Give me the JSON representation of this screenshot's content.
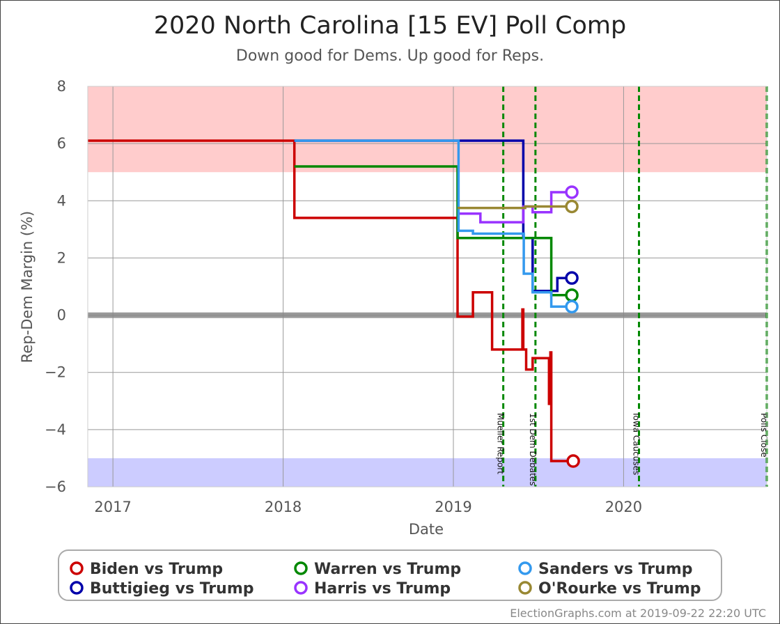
{
  "header": {
    "title": "2020 North Carolina [15 EV] Poll Comp",
    "subtitle": "Down good for Dems. Up good for Reps."
  },
  "footer": {
    "credit": "ElectionGraphs.com at 2019-09-22 22:20 UTC"
  },
  "colors": {
    "rep_band": "#ffcccc",
    "dem_band": "#ccccff",
    "zero_line": "#888888",
    "grid": "#999999",
    "event_line": "#008800"
  },
  "chart_data": {
    "type": "line",
    "title": "2020 North Carolina [15 EV] Poll Comp",
    "subtitle": "Down good for Dems. Up good for Reps.",
    "xlabel": "Date",
    "ylabel": "Rep-Dem Margin (%)",
    "xlim": [
      "2016-11-08",
      "2020-11-03"
    ],
    "ylim": [
      -6,
      8
    ],
    "x_ticks": [
      "2017-01-01",
      "2018-01-01",
      "2019-01-01",
      "2020-01-01"
    ],
    "x_tick_labels": [
      "2017",
      "2018",
      "2019",
      "2020"
    ],
    "y_ticks": [
      -6,
      -4,
      -2,
      0,
      2,
      4,
      6,
      8
    ],
    "y_tick_labels": [
      "−6",
      "−4",
      "−2",
      "0",
      "2",
      "4",
      "6",
      "8"
    ],
    "grid": true,
    "bands": [
      {
        "from": 5,
        "to": 8,
        "color": "#ffcccc"
      },
      {
        "from": -6,
        "to": -5,
        "color": "#ccccff"
      }
    ],
    "events": [
      {
        "date": "2019-04-18",
        "label": "Mueller Report"
      },
      {
        "date": "2019-06-26",
        "label": "1st Dem Debates"
      },
      {
        "date": "2020-02-03",
        "label": "Iowa Caucuses"
      },
      {
        "date": "2020-11-03",
        "label": "Polls Close"
      }
    ],
    "series": [
      {
        "name": "Biden vs Trump",
        "color": "#cc0000",
        "points": [
          [
            "2016-11-08",
            6.1
          ],
          [
            "2018-01-25",
            6.1
          ],
          [
            "2018-01-25",
            3.4
          ],
          [
            "2019-01-10",
            3.4
          ],
          [
            "2019-01-10",
            -0.05
          ],
          [
            "2019-02-12",
            -0.05
          ],
          [
            "2019-02-12",
            0.8
          ],
          [
            "2019-03-25",
            0.8
          ],
          [
            "2019-03-25",
            -1.2
          ],
          [
            "2019-05-29",
            -1.2
          ],
          [
            "2019-05-29",
            0.2
          ],
          [
            "2019-05-31",
            0.2
          ],
          [
            "2019-05-31",
            -1.2
          ],
          [
            "2019-06-06",
            -1.2
          ],
          [
            "2019-06-06",
            -1.9
          ],
          [
            "2019-06-20",
            -1.9
          ],
          [
            "2019-06-20",
            -1.5
          ],
          [
            "2019-07-25",
            -1.5
          ],
          [
            "2019-07-25",
            -3.1
          ],
          [
            "2019-07-28",
            -3.1
          ],
          [
            "2019-07-28",
            -1.3
          ],
          [
            "2019-07-30",
            -1.3
          ],
          [
            "2019-07-30",
            -5.1
          ],
          [
            "2019-09-15",
            -5.1
          ]
        ]
      },
      {
        "name": "Buttigieg vs Trump",
        "color": "#0000aa",
        "points": [
          [
            "2018-01-25",
            6.1
          ],
          [
            "2019-05-31",
            6.1
          ],
          [
            "2019-05-31",
            2.7
          ],
          [
            "2019-06-20",
            2.7
          ],
          [
            "2019-06-20",
            0.85
          ],
          [
            "2019-08-12",
            0.85
          ],
          [
            "2019-08-12",
            1.3
          ],
          [
            "2019-09-12",
            1.3
          ]
        ]
      },
      {
        "name": "Warren vs Trump",
        "color": "#008800",
        "points": [
          [
            "2018-01-25",
            5.2
          ],
          [
            "2019-01-10",
            5.2
          ],
          [
            "2019-01-10",
            2.7
          ],
          [
            "2019-07-30",
            2.7
          ],
          [
            "2019-07-30",
            0.7
          ],
          [
            "2019-09-12",
            0.7
          ]
        ]
      },
      {
        "name": "Harris vs Trump",
        "color": "#9933ff",
        "points": [
          [
            "2019-01-10",
            3.55
          ],
          [
            "2019-02-28",
            3.55
          ],
          [
            "2019-02-28",
            3.25
          ],
          [
            "2019-05-31",
            3.25
          ],
          [
            "2019-05-31",
            3.8
          ],
          [
            "2019-06-20",
            3.8
          ],
          [
            "2019-06-20",
            3.6
          ],
          [
            "2019-07-30",
            3.6
          ],
          [
            "2019-07-30",
            4.3
          ],
          [
            "2019-09-12",
            4.3
          ]
        ]
      },
      {
        "name": "Sanders vs Trump",
        "color": "#3399ee",
        "points": [
          [
            "2018-01-25",
            6.1
          ],
          [
            "2019-01-12",
            6.1
          ],
          [
            "2019-01-12",
            2.95
          ],
          [
            "2019-02-12",
            2.95
          ],
          [
            "2019-02-12",
            2.85
          ],
          [
            "2019-06-01",
            2.85
          ],
          [
            "2019-06-01",
            1.45
          ],
          [
            "2019-06-20",
            1.45
          ],
          [
            "2019-06-20",
            0.8
          ],
          [
            "2019-07-30",
            0.8
          ],
          [
            "2019-07-30",
            0.3
          ],
          [
            "2019-09-12",
            0.3
          ]
        ]
      },
      {
        "name": "O'Rourke vs Trump",
        "color": "#998833",
        "points": [
          [
            "2019-01-10",
            3.75
          ],
          [
            "2019-06-04",
            3.75
          ],
          [
            "2019-06-04",
            3.8
          ],
          [
            "2019-09-12",
            3.8
          ]
        ]
      }
    ],
    "legend": {
      "placement": "bottom",
      "order": [
        "Biden vs Trump",
        "Warren vs Trump",
        "Sanders vs Trump",
        "Buttigieg vs Trump",
        "Harris vs Trump",
        "O'Rourke vs Trump"
      ]
    }
  }
}
